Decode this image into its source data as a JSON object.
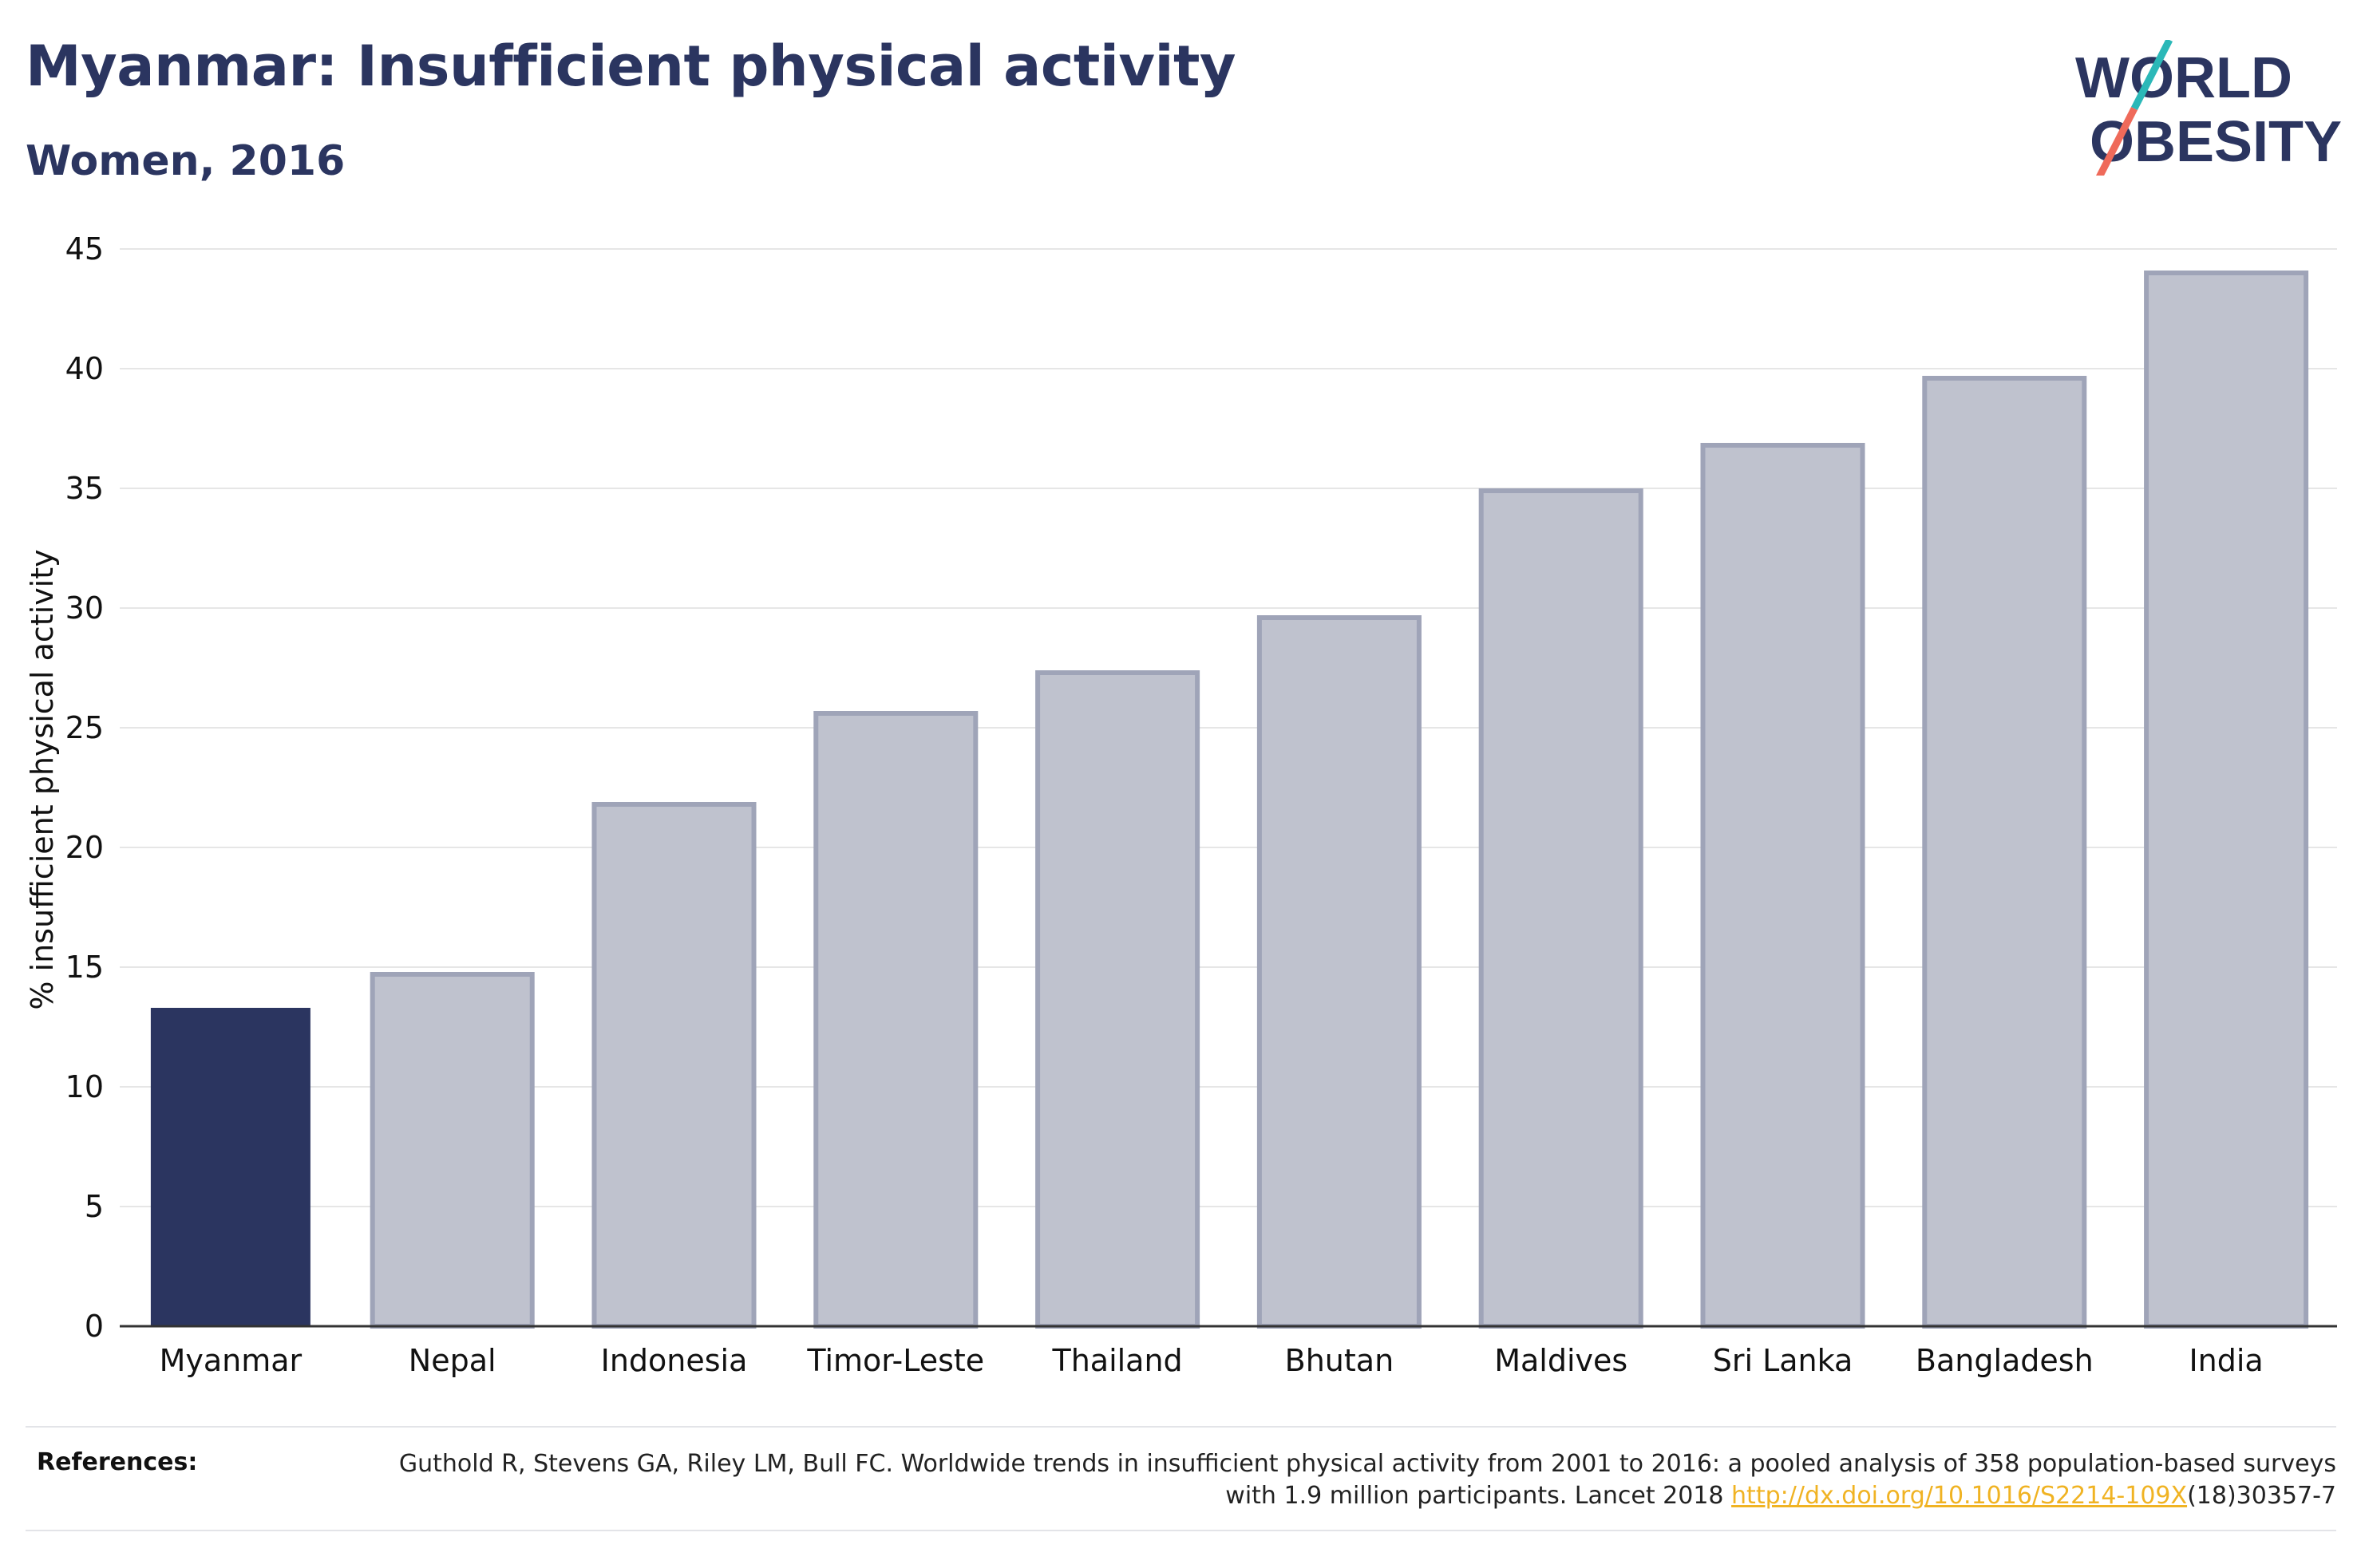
{
  "title": "Myanmar: Insufficient physical activity",
  "subtitle": "Women, 2016",
  "logo": {
    "line1": "WORLD",
    "line2": "OBESITY"
  },
  "colors": {
    "highlight_bar": "#2b3560",
    "other_bar_fill": "#bfc2ce",
    "other_bar_stroke": "#9fa4b8",
    "gridline": "#e6e6e6",
    "text": "#2b3560",
    "link": "#f0b323",
    "logo_teal": "#2bb8b8",
    "logo_coral": "#ef6a5a"
  },
  "chart_data": {
    "type": "bar",
    "title": "Myanmar: Insufficient physical activity",
    "subtitle": "Women, 2016",
    "xlabel": "",
    "ylabel": "% insufficient physical activity",
    "ylim": [
      0,
      45
    ],
    "yticks": [
      0,
      5,
      10,
      15,
      20,
      25,
      30,
      35,
      40,
      45
    ],
    "grid": true,
    "categories": [
      "Myanmar",
      "Nepal",
      "Indonesia",
      "Timor-Leste",
      "Thailand",
      "Bhutan",
      "Maldives",
      "Sri Lanka",
      "Bangladesh",
      "India"
    ],
    "values": [
      13.3,
      14.7,
      21.8,
      25.6,
      27.3,
      29.6,
      34.9,
      36.8,
      39.6,
      44.0
    ],
    "highlight": "Myanmar"
  },
  "references": {
    "label": "References:",
    "text_before": "Guthold R, Stevens GA, Riley LM, Bull FC. Worldwide trends in insufficient physical activity from 2001 to 2016: a pooled analysis of 358 population-based surveys with 1.9 million participants. Lancet 2018 ",
    "link": "http://dx.doi.org/10.1016/S2214-109X",
    "text_after": "(18)30357-7"
  }
}
